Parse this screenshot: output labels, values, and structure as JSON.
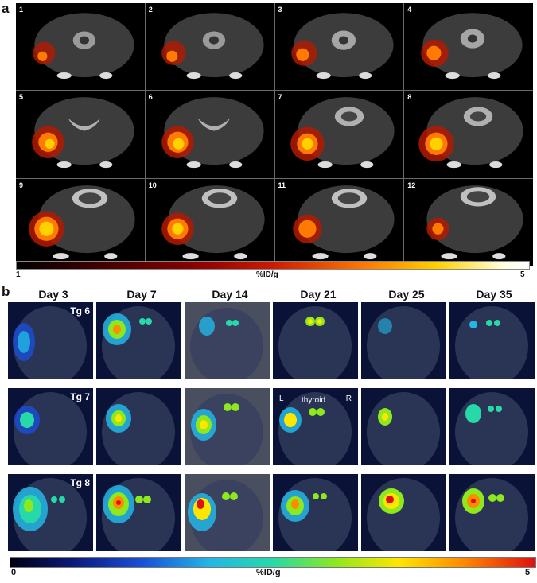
{
  "panel_a": {
    "letter": "a",
    "slice_numbers": [
      "1",
      "2",
      "3",
      "4",
      "5",
      "6",
      "7",
      "8",
      "9",
      "10",
      "11",
      "12"
    ],
    "colorbar": {
      "min_label": "1",
      "unit_label": "%ID/g",
      "max_label": "5"
    }
  },
  "panel_b": {
    "letter": "b",
    "days": [
      "Day 3",
      "Day 7",
      "Day 14",
      "Day 21",
      "Day 25",
      "Day 35"
    ],
    "rows": [
      "Tg 6",
      "Tg 7",
      "Tg 8"
    ],
    "annotations": {
      "left": "L",
      "thyroid": "thyroid",
      "right": "R"
    },
    "colorbar": {
      "min_label": "0",
      "unit_label": "%ID/g",
      "max_label": "5"
    }
  }
}
